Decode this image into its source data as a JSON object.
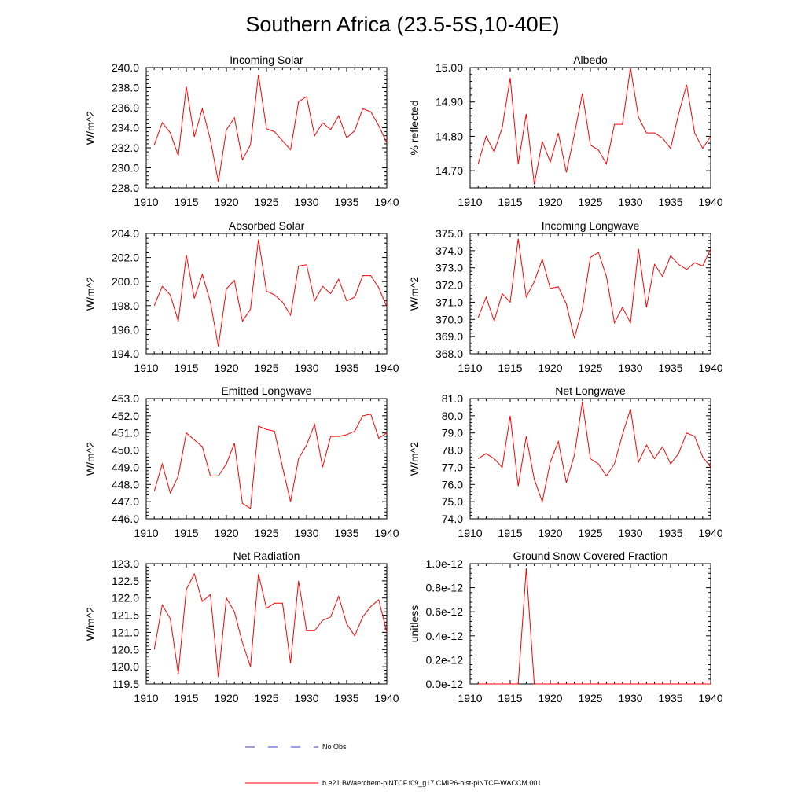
{
  "figure": {
    "title": "Southern Africa (23.5-5S,10-40E)"
  },
  "legend": {
    "obs_label": "No Obs",
    "obs_color": "#3a3ad8",
    "model_label": "b.e21.BWaerchem-piNTCF.f09_g17.CMIP6-hist-piNTCF-WACCM.001",
    "model_color": "#ff0000"
  },
  "chart_data": [
    {
      "type": "line",
      "title": "Incoming Solar",
      "ylabel": "W/m^2",
      "xlim": [
        1910,
        1940
      ],
      "xticks": [
        "1910",
        "1915",
        "1920",
        "1925",
        "1930",
        "1935",
        "1940"
      ],
      "ylim": [
        228,
        240
      ],
      "yticks": [
        "228.0",
        "230.0",
        "232.0",
        "234.0",
        "236.0",
        "238.0",
        "240.0"
      ],
      "x": [
        1911,
        1912,
        1913,
        1914,
        1915,
        1916,
        1917,
        1918,
        1919,
        1920,
        1921,
        1922,
        1923,
        1924,
        1925,
        1926,
        1927,
        1928,
        1929,
        1930,
        1931,
        1932,
        1933,
        1934,
        1935,
        1936,
        1937,
        1938,
        1939,
        1940
      ],
      "series": [
        {
          "values": [
            232.3,
            234.5,
            233.5,
            231.2,
            238.1,
            233.1,
            235.9,
            232.8,
            228.6,
            233.8,
            235.0,
            230.8,
            232.3,
            239.3,
            233.9,
            233.6,
            232.7,
            231.8,
            236.6,
            237.1,
            233.2,
            234.5,
            233.8,
            235.2,
            233.0,
            233.7,
            235.9,
            235.6,
            234.2,
            232.5
          ]
        }
      ]
    },
    {
      "type": "line",
      "title": "Albedo",
      "ylabel": "% reflected",
      "xlim": [
        1910,
        1940
      ],
      "xticks": [
        "1910",
        "1915",
        "1920",
        "1925",
        "1930",
        "1935",
        "1940"
      ],
      "ylim": [
        14.65,
        15.0
      ],
      "yticks": [
        "14.70",
        "14.80",
        "14.90",
        "15.00"
      ],
      "ytick_values": [
        14.7,
        14.8,
        14.9,
        15.0
      ],
      "x": [
        1911,
        1912,
        1913,
        1914,
        1915,
        1916,
        1917,
        1918,
        1919,
        1920,
        1921,
        1922,
        1923,
        1924,
        1925,
        1926,
        1927,
        1928,
        1929,
        1930,
        1931,
        1932,
        1933,
        1934,
        1935,
        1936,
        1937,
        1938,
        1939,
        1940
      ],
      "series": [
        {
          "values": [
            14.72,
            14.8,
            14.755,
            14.825,
            14.97,
            14.72,
            14.865,
            14.66,
            14.785,
            14.725,
            14.81,
            14.695,
            14.805,
            14.925,
            14.775,
            14.76,
            14.72,
            14.835,
            14.835,
            15.0,
            14.855,
            14.81,
            14.81,
            14.795,
            14.765,
            14.865,
            14.95,
            14.81,
            14.765,
            14.8
          ]
        }
      ]
    },
    {
      "type": "line",
      "title": "Absorbed Solar",
      "ylabel": "W/m^2",
      "xlim": [
        1910,
        1940
      ],
      "xticks": [
        "1910",
        "1915",
        "1920",
        "1925",
        "1930",
        "1935",
        "1940"
      ],
      "ylim": [
        194,
        204
      ],
      "yticks": [
        "194.0",
        "196.0",
        "198.0",
        "200.0",
        "202.0",
        "204.0"
      ],
      "x": [
        1911,
        1912,
        1913,
        1914,
        1915,
        1916,
        1917,
        1918,
        1919,
        1920,
        1921,
        1922,
        1923,
        1924,
        1925,
        1926,
        1927,
        1928,
        1929,
        1930,
        1931,
        1932,
        1933,
        1934,
        1935,
        1936,
        1937,
        1938,
        1939,
        1940
      ],
      "series": [
        {
          "values": [
            198.0,
            199.6,
            198.9,
            196.7,
            202.2,
            198.6,
            200.6,
            198.3,
            194.6,
            199.4,
            200.1,
            196.7,
            197.7,
            203.5,
            199.2,
            198.9,
            198.3,
            197.2,
            201.3,
            201.4,
            198.4,
            199.6,
            199.0,
            200.2,
            198.4,
            198.7,
            200.5,
            200.5,
            199.5,
            197.9
          ]
        }
      ]
    },
    {
      "type": "line",
      "title": "Incoming Longwave",
      "ylabel": "W/m^2",
      "xlim": [
        1910,
        1940
      ],
      "xticks": [
        "1910",
        "1915",
        "1920",
        "1925",
        "1930",
        "1935",
        "1940"
      ],
      "ylim": [
        368,
        375
      ],
      "yticks": [
        "368.0",
        "369.0",
        "370.0",
        "371.0",
        "372.0",
        "373.0",
        "374.0",
        "375.0"
      ],
      "x": [
        1911,
        1912,
        1913,
        1914,
        1915,
        1916,
        1917,
        1918,
        1919,
        1920,
        1921,
        1922,
        1923,
        1924,
        1925,
        1926,
        1927,
        1928,
        1929,
        1930,
        1931,
        1932,
        1933,
        1934,
        1935,
        1936,
        1937,
        1938,
        1939,
        1940
      ],
      "series": [
        {
          "values": [
            370.1,
            371.3,
            369.9,
            371.5,
            371.0,
            374.7,
            371.3,
            372.2,
            373.5,
            371.8,
            371.9,
            370.9,
            368.9,
            370.6,
            373.6,
            373.9,
            372.5,
            369.8,
            370.7,
            369.8,
            374.1,
            370.7,
            373.2,
            372.5,
            373.7,
            373.2,
            372.9,
            373.3,
            373.1,
            374.1
          ]
        }
      ]
    },
    {
      "type": "line",
      "title": "Emitted Longwave",
      "ylabel": "W/m^2",
      "xlim": [
        1910,
        1940
      ],
      "xticks": [
        "1910",
        "1915",
        "1920",
        "1925",
        "1930",
        "1935",
        "1940"
      ],
      "ylim": [
        446,
        453
      ],
      "yticks": [
        "446.0",
        "447.0",
        "448.0",
        "449.0",
        "450.0",
        "451.0",
        "452.0",
        "453.0"
      ],
      "x": [
        1911,
        1912,
        1913,
        1914,
        1915,
        1916,
        1917,
        1918,
        1919,
        1920,
        1921,
        1922,
        1923,
        1924,
        1925,
        1926,
        1927,
        1928,
        1929,
        1930,
        1931,
        1932,
        1933,
        1934,
        1935,
        1936,
        1937,
        1938,
        1939,
        1940
      ],
      "series": [
        {
          "values": [
            447.6,
            449.2,
            447.5,
            448.5,
            451.0,
            450.6,
            450.2,
            448.5,
            448.5,
            449.2,
            450.4,
            446.9,
            446.6,
            451.4,
            451.2,
            451.1,
            449.0,
            447.0,
            449.5,
            450.3,
            451.5,
            449.0,
            450.8,
            450.8,
            450.9,
            451.1,
            452.0,
            452.1,
            450.7,
            451.0
          ]
        }
      ]
    },
    {
      "type": "line",
      "title": "Net Longwave",
      "ylabel": "W/m^2",
      "xlim": [
        1910,
        1940
      ],
      "xticks": [
        "1910",
        "1915",
        "1920",
        "1925",
        "1930",
        "1935",
        "1940"
      ],
      "ylim": [
        74,
        81
      ],
      "yticks": [
        "74.0",
        "75.0",
        "76.0",
        "77.0",
        "78.0",
        "79.0",
        "80.0",
        "81.0"
      ],
      "x": [
        1911,
        1912,
        1913,
        1914,
        1915,
        1916,
        1917,
        1918,
        1919,
        1920,
        1921,
        1922,
        1923,
        1924,
        1925,
        1926,
        1927,
        1928,
        1929,
        1930,
        1931,
        1932,
        1933,
        1934,
        1935,
        1936,
        1937,
        1938,
        1939,
        1940
      ],
      "series": [
        {
          "values": [
            77.5,
            77.8,
            77.5,
            77.0,
            80.0,
            75.9,
            78.8,
            76.3,
            75.0,
            77.3,
            78.5,
            76.1,
            77.7,
            80.8,
            77.5,
            77.2,
            76.5,
            77.2,
            78.9,
            80.4,
            77.3,
            78.3,
            77.5,
            78.2,
            77.2,
            77.8,
            79.0,
            78.8,
            77.6,
            77.0
          ]
        }
      ]
    },
    {
      "type": "line",
      "title": "Net Radiation",
      "ylabel": "W/m^2",
      "xlim": [
        1910,
        1940
      ],
      "xticks": [
        "1910",
        "1915",
        "1920",
        "1925",
        "1930",
        "1935",
        "1940"
      ],
      "ylim": [
        119.5,
        123.0
      ],
      "yticks": [
        "119.5",
        "120.0",
        "120.5",
        "121.0",
        "121.5",
        "122.0",
        "122.5",
        "123.0"
      ],
      "x": [
        1911,
        1912,
        1913,
        1914,
        1915,
        1916,
        1917,
        1918,
        1919,
        1920,
        1921,
        1922,
        1923,
        1924,
        1925,
        1926,
        1927,
        1928,
        1929,
        1930,
        1931,
        1932,
        1933,
        1934,
        1935,
        1936,
        1937,
        1938,
        1939,
        1940
      ],
      "series": [
        {
          "values": [
            120.5,
            121.8,
            121.4,
            119.8,
            122.25,
            122.7,
            121.9,
            122.1,
            119.7,
            122.0,
            121.6,
            120.7,
            120.0,
            122.7,
            121.7,
            121.85,
            121.85,
            120.1,
            122.5,
            121.05,
            121.05,
            121.35,
            121.45,
            122.05,
            121.25,
            120.9,
            121.45,
            121.75,
            121.95,
            121.0
          ]
        }
      ]
    },
    {
      "type": "line",
      "title": "Ground Snow Covered Fraction",
      "ylabel": "unitless",
      "xlim": [
        1910,
        1940
      ],
      "xticks": [
        "1910",
        "1915",
        "1920",
        "1925",
        "1930",
        "1935",
        "1940"
      ],
      "ylim": [
        0,
        1e-12
      ],
      "yticks": [
        "0.0e-12",
        "0.2e-12",
        "0.4e-12",
        "0.6e-12",
        "0.8e-12",
        "1.0e-12"
      ],
      "ytick_values": [
        0,
        2e-13,
        4e-13,
        6e-13,
        8e-13,
        1e-12
      ],
      "x": [
        1911,
        1912,
        1913,
        1914,
        1915,
        1916,
        1917,
        1918,
        1919,
        1920,
        1921,
        1922,
        1923,
        1924,
        1925,
        1926,
        1927,
        1928,
        1929,
        1930,
        1931,
        1932,
        1933,
        1934,
        1935,
        1936,
        1937,
        1938,
        1939,
        1940
      ],
      "series": [
        {
          "values": [
            0,
            0,
            0,
            0,
            0,
            0,
            9.6e-13,
            0,
            0,
            0,
            0,
            0,
            0,
            0,
            0,
            0,
            0,
            0,
            0,
            0,
            0,
            0,
            0,
            0,
            0,
            0,
            0,
            0,
            0,
            0
          ]
        }
      ]
    }
  ]
}
